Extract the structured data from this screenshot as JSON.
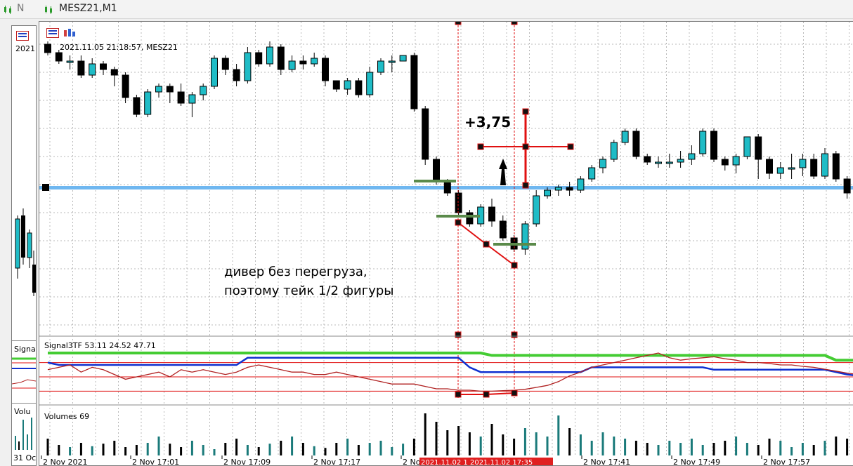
{
  "titlebar": {
    "left_tab_text": "N",
    "main_tab_title": "MESZ21,M1"
  },
  "left_window": {
    "header_date": "2021",
    "signal_label": "Signa",
    "volume_label": "Volu",
    "axis_date": "31 Oc"
  },
  "chart_header": "2021.11.05 21:18:57, MESZ21",
  "annotations": {
    "profit": "+3,75",
    "note_line1": "дивер без перегруза,",
    "note_line2": "поэтому тейк 1/2 фигуры"
  },
  "signal_header": "Signal3TF 53.11 24.52 47.71",
  "volumes_header": "Volumes 69",
  "x_axis_labels": [
    "2 Nov 2021",
    "2 Nov 17:01",
    "2 Nov 17:09",
    "2 Nov 17:17",
    "2 Nov",
    "2 Nov 17:41",
    "2 Nov 17:49",
    "2 Nov 17:57"
  ],
  "time_highlight": "2021.11.02 1 2021.11.02 17:35",
  "colors": {
    "bull": "#1fbcc6",
    "bear": "#000000",
    "grid": "#b8b8b8",
    "level": "#6fb7f0",
    "marker": "#e01010",
    "green_line": "#44cc33",
    "blue_line": "#1030d0",
    "dark_red_line": "#b02020"
  },
  "chart_data": {
    "type": "candlestick",
    "candles": [
      [
        51,
        48,
        47,
        52
      ],
      [
        48,
        45,
        44,
        49
      ],
      [
        45,
        45,
        42,
        47
      ],
      [
        45,
        40,
        39,
        47
      ],
      [
        40,
        44,
        39,
        46
      ],
      [
        44,
        42,
        40,
        45
      ],
      [
        42,
        40,
        36,
        43
      ],
      [
        40,
        32,
        30,
        41
      ],
      [
        32,
        26,
        25,
        33
      ],
      [
        26,
        34,
        25,
        35
      ],
      [
        34,
        36,
        32,
        37
      ],
      [
        36,
        34,
        30,
        37
      ],
      [
        34,
        30,
        29,
        37
      ],
      [
        30,
        33,
        25,
        34
      ],
      [
        33,
        36,
        31,
        37
      ],
      [
        36,
        46,
        35,
        47
      ],
      [
        46,
        42,
        40,
        47
      ],
      [
        42,
        38,
        36,
        44
      ],
      [
        38,
        48,
        37,
        50
      ],
      [
        48,
        44,
        43,
        49
      ],
      [
        44,
        50,
        43,
        52
      ],
      [
        50,
        42,
        40,
        51
      ],
      [
        42,
        45,
        41,
        47
      ],
      [
        45,
        44,
        42,
        47
      ],
      [
        44,
        46,
        43,
        48
      ],
      [
        46,
        38,
        36,
        47
      ],
      [
        38,
        35,
        34,
        38
      ],
      [
        35,
        38,
        33,
        39
      ],
      [
        38,
        33,
        32,
        39
      ],
      [
        33,
        41,
        32,
        43
      ],
      [
        41,
        45,
        40,
        46
      ],
      [
        45,
        45,
        41,
        47
      ],
      [
        45,
        47,
        45,
        47
      ],
      [
        47,
        28,
        27,
        48
      ],
      [
        28,
        10,
        8,
        29
      ],
      [
        10,
        2,
        1,
        11
      ],
      [
        2,
        -2,
        -3,
        3
      ],
      [
        -2,
        -9,
        -10,
        -1
      ],
      [
        -9,
        -13,
        -14,
        -8
      ],
      [
        -13,
        -7,
        -14,
        -6
      ],
      [
        -7,
        -12,
        -14,
        -4
      ],
      [
        -12,
        -18,
        -19,
        -10
      ],
      [
        -18,
        -22,
        -23,
        -17
      ],
      [
        -22,
        -13,
        -24,
        -12
      ],
      [
        -13,
        -3,
        -14,
        -1
      ],
      [
        -3,
        -1,
        -4,
        0
      ],
      [
        -1,
        0,
        -3,
        1
      ],
      [
        0,
        -1,
        -3,
        2
      ],
      [
        -1,
        3,
        -2,
        4
      ],
      [
        3,
        7,
        2,
        8
      ],
      [
        7,
        10,
        5,
        11
      ],
      [
        10,
        16,
        9,
        17
      ],
      [
        16,
        20,
        15,
        21
      ],
      [
        20,
        11,
        10,
        21
      ],
      [
        11,
        9,
        8,
        12
      ],
      [
        9,
        9,
        7,
        11
      ],
      [
        9,
        9,
        7,
        12
      ],
      [
        9,
        10,
        7,
        13
      ],
      [
        10,
        12,
        8,
        15
      ],
      [
        12,
        20,
        11,
        21
      ],
      [
        20,
        10,
        9,
        21
      ],
      [
        10,
        8,
        6,
        11
      ],
      [
        8,
        11,
        5,
        12
      ],
      [
        11,
        18,
        10,
        18
      ],
      [
        18,
        10,
        3,
        19
      ],
      [
        10,
        5,
        3,
        11
      ],
      [
        5,
        7,
        3,
        9
      ],
      [
        7,
        7,
        3,
        12
      ],
      [
        7,
        10,
        4,
        12
      ],
      [
        10,
        4,
        3,
        12
      ],
      [
        4,
        12,
        3,
        14
      ],
      [
        12,
        3,
        2,
        13
      ],
      [
        3,
        -2,
        -4,
        4
      ],
      [
        -2,
        2,
        -3,
        4
      ],
      [
        2,
        3,
        0,
        6
      ]
    ],
    "signal_series": [
      {
        "name": "green",
        "values": [
          100,
          100,
          100,
          100,
          100,
          100,
          100,
          100,
          100,
          100,
          100,
          100,
          100,
          100,
          100,
          100,
          100,
          100,
          100,
          100,
          100,
          100,
          100,
          100,
          100,
          100,
          100,
          100,
          100,
          100,
          100,
          100,
          100,
          100,
          100,
          100,
          100,
          100,
          100,
          100,
          95,
          95,
          95,
          95,
          95,
          95,
          95,
          95,
          95,
          95,
          95,
          95,
          95,
          95,
          95,
          95,
          95,
          95,
          95,
          95,
          95,
          95,
          95,
          95,
          95,
          95,
          95,
          95,
          95,
          95,
          95,
          85,
          85,
          85,
          85
        ]
      },
      {
        "name": "blue",
        "values": [
          80,
          75,
          75,
          75,
          75,
          75,
          75,
          75,
          75,
          75,
          75,
          75,
          75,
          75,
          75,
          75,
          75,
          75,
          90,
          90,
          90,
          90,
          90,
          90,
          90,
          90,
          90,
          90,
          90,
          90,
          90,
          90,
          90,
          90,
          90,
          90,
          90,
          90,
          70,
          60,
          60,
          60,
          60,
          60,
          60,
          60,
          60,
          60,
          60,
          70,
          70,
          70,
          70,
          70,
          70,
          70,
          70,
          70,
          70,
          70,
          65,
          65,
          65,
          65,
          65,
          65,
          65,
          65,
          65,
          65,
          65,
          60,
          55,
          52,
          52
        ]
      },
      {
        "name": "dark_red",
        "values": [
          65,
          70,
          75,
          60,
          70,
          65,
          55,
          45,
          50,
          55,
          60,
          50,
          65,
          60,
          65,
          60,
          55,
          60,
          70,
          75,
          70,
          65,
          60,
          60,
          55,
          55,
          60,
          55,
          50,
          45,
          40,
          35,
          35,
          35,
          30,
          25,
          25,
          22,
          22,
          20,
          20,
          21,
          22,
          24,
          28,
          32,
          40,
          52,
          60,
          70,
          75,
          80,
          85,
          90,
          95,
          100,
          90,
          85,
          88,
          90,
          92,
          88,
          85,
          80,
          80,
          78,
          75,
          75,
          72,
          70,
          66,
          62,
          58,
          55,
          50
        ]
      }
    ],
    "signal_levels": [
      80,
      50,
      20
    ],
    "volumes": [
      40,
      25,
      20,
      30,
      22,
      28,
      35,
      20,
      25,
      30,
      45,
      28,
      20,
      35,
      25,
      15,
      30,
      40,
      25,
      20,
      28,
      35,
      45,
      30,
      22,
      18,
      30,
      40,
      25,
      30,
      35,
      20,
      28,
      40,
      100,
      80,
      60,
      70,
      55,
      45,
      75,
      50,
      40,
      65,
      55,
      45,
      95,
      65,
      50,
      35,
      55,
      45,
      40,
      35,
      30,
      25,
      35,
      30,
      40,
      25,
      30,
      35,
      45,
      30,
      25,
      40,
      35,
      20,
      30,
      25,
      35,
      45,
      40,
      30,
      35
    ]
  }
}
